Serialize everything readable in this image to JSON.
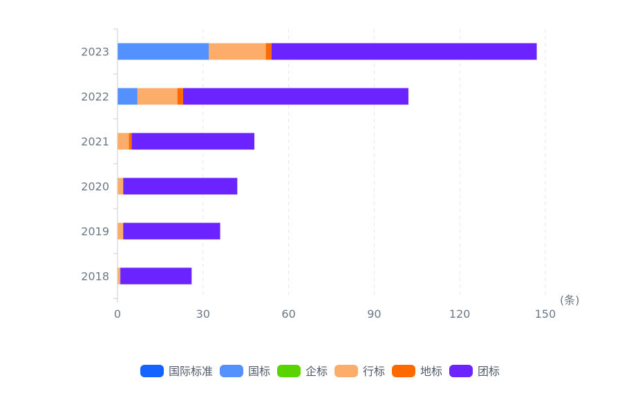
{
  "chart_data": {
    "type": "bar",
    "orientation": "horizontal",
    "stacked": true,
    "categories": [
      "2018",
      "2019",
      "2020",
      "2021",
      "2022",
      "2023"
    ],
    "series": [
      {
        "name": "国际标准",
        "color": "#1664ff",
        "values": [
          0,
          0,
          0,
          0,
          0,
          0
        ]
      },
      {
        "name": "国标",
        "color": "#5291ff",
        "values": [
          0,
          0,
          0,
          0,
          7,
          32
        ]
      },
      {
        "name": "企标",
        "color": "#59d400",
        "values": [
          0,
          0,
          0,
          0,
          0,
          0
        ]
      },
      {
        "name": "行标",
        "color": "#fcad6a",
        "values": [
          1,
          2,
          2,
          4,
          14,
          20
        ]
      },
      {
        "name": "地标",
        "color": "#ff6a00",
        "values": [
          0,
          0,
          0,
          1,
          2,
          2
        ]
      },
      {
        "name": "团标",
        "color": "#6b23ff",
        "values": [
          25,
          34,
          40,
          43,
          79,
          93
        ]
      }
    ],
    "xlim": [
      0,
      150
    ],
    "xticks": [
      "0",
      "30",
      "60",
      "90",
      "120",
      "150"
    ],
    "unit_label": "(条)",
    "grid": "vertical dashed",
    "legend_position": "bottom"
  }
}
